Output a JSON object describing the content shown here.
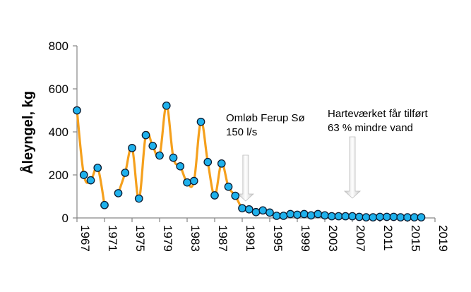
{
  "chart_data": {
    "type": "line",
    "title": "",
    "xlabel": "",
    "ylabel": "Åleyngel, kg",
    "xlim": [
      1967,
      2019
    ],
    "ylim": [
      0,
      800
    ],
    "x_ticks": [
      "1967",
      "1971",
      "1975",
      "1979",
      "1983",
      "1987",
      "1991",
      "1995",
      "1999",
      "2003",
      "2007",
      "2011",
      "2015",
      "2019"
    ],
    "y_ticks": [
      "0",
      "200",
      "400",
      "600",
      "800"
    ],
    "grid": false,
    "line_color": "#f5a01c",
    "marker_fill": "#1fb1ec",
    "marker_edge": "#0a1a30",
    "series": [
      {
        "segments": [
          {
            "x": [
              1967,
              1968,
              1969,
              1970,
              1971
            ],
            "y": [
              500,
              200,
              175,
              233,
              60
            ]
          },
          {
            "x": [
              1973,
              1974,
              1975,
              1976,
              1977,
              1978,
              1979,
              1980,
              1981,
              1982,
              1983,
              1984,
              1985,
              1986,
              1987,
              1988,
              1989,
              1990,
              1991,
              1992,
              1993,
              1994,
              1995,
              1996,
              1997,
              1998,
              1999,
              2000,
              2001,
              2002,
              2003,
              2004,
              2005,
              2006,
              2007,
              2008,
              2009,
              2010,
              2011,
              2012,
              2013,
              2014,
              2015,
              2016,
              2017
            ],
            "y": [
              115,
              210,
              325,
              90,
              385,
              335,
              290,
              522,
              280,
              240,
              165,
              172,
              447,
              260,
              105,
              253,
              145,
              103,
              45,
              40,
              27,
              35,
              25,
              10,
              10,
              18,
              15,
              18,
              12,
              18,
              12,
              8,
              8,
              8,
              8,
              5,
              3,
              3,
              5,
              5,
              5,
              3,
              3,
              3,
              3
            ]
          }
        ]
      }
    ],
    "annotations": [
      {
        "lines": [
          "Omløb Ferup Sø",
          "150 l/s"
        ],
        "arrow_x": 1991.5
      },
      {
        "lines": [
          "Harteværket får tilført",
          "63 % mindre vand"
        ],
        "arrow_x": 2007
      }
    ]
  }
}
